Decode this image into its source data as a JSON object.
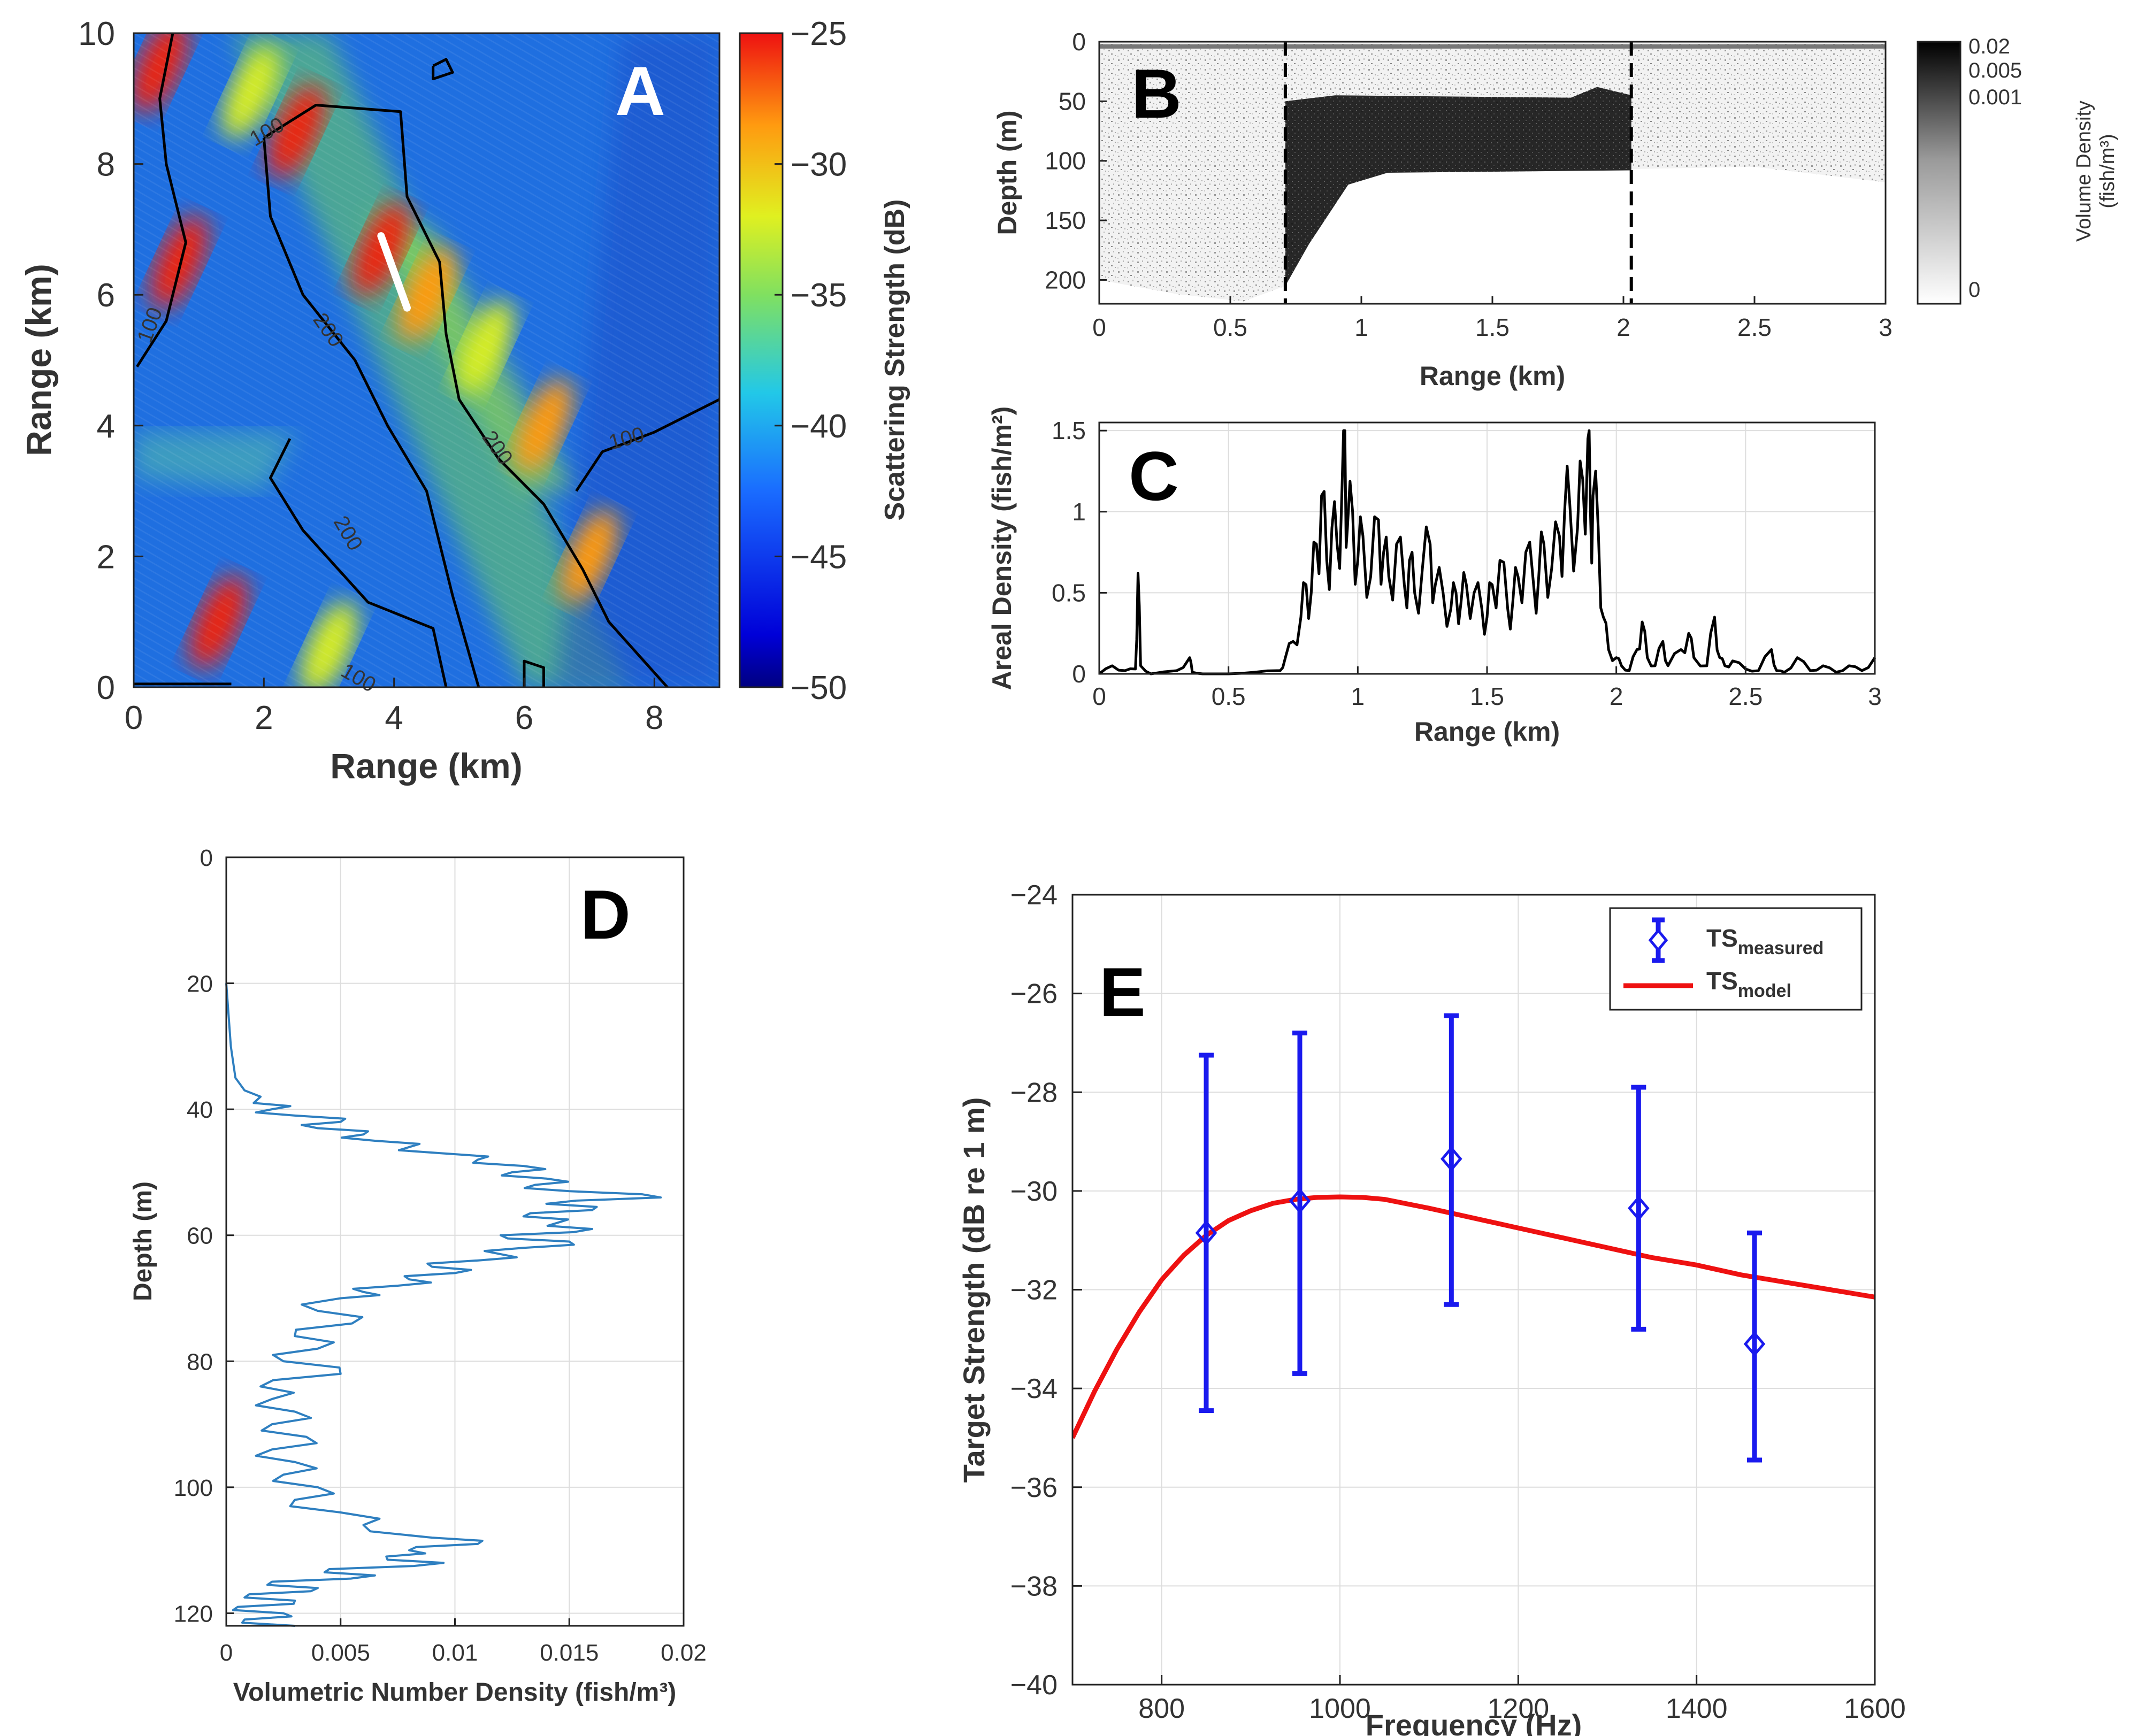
{
  "chart_data": [
    {
      "id": "A",
      "type": "heatmap",
      "panel_letter": "A",
      "xlabel": "Range (km)",
      "ylabel": "Range (km)",
      "xlim": [
        0,
        9
      ],
      "ylim": [
        0,
        10
      ],
      "x_ticks": [
        0,
        2,
        4,
        6,
        8
      ],
      "y_ticks": [
        0,
        2,
        4,
        6,
        8,
        10
      ],
      "colorbar": {
        "label": "Scattering Strength (dB)",
        "range": [
          -50,
          -25
        ],
        "ticks": [
          -25,
          -30,
          -35,
          -40,
          -45,
          -50
        ]
      },
      "contour_labels": [
        "100",
        "200",
        "200",
        "200",
        "100",
        "100",
        "100"
      ],
      "contours": [
        {
          "label": "100",
          "points": [
            [
              0.6,
              10
            ],
            [
              0.4,
              9.0
            ],
            [
              0.5,
              8.0
            ],
            [
              0.8,
              6.8
            ],
            [
              0.5,
              5.6
            ],
            [
              0.05,
              4.9
            ]
          ]
        },
        {
          "label": "200",
          "points": [
            [
              2.0,
              8.4
            ],
            [
              2.1,
              7.2
            ],
            [
              2.6,
              6.0
            ],
            [
              3.4,
              5.0
            ],
            [
              3.9,
              4.0
            ],
            [
              4.5,
              3.0
            ],
            [
              4.9,
              1.4
            ],
            [
              5.3,
              0
            ]
          ]
        },
        {
          "label": "200",
          "points": [
            [
              2.0,
              8.4
            ],
            [
              2.8,
              8.9
            ],
            [
              4.1,
              8.8
            ],
            [
              4.2,
              7.5
            ],
            [
              4.7,
              6.5
            ],
            [
              4.8,
              5.4
            ],
            [
              5.0,
              4.4
            ],
            [
              5.6,
              3.5
            ],
            [
              6.3,
              2.8
            ],
            [
              6.9,
              1.8
            ],
            [
              7.3,
              1.0
            ],
            [
              8.2,
              0
            ]
          ]
        },
        {
          "label": "100",
          "points": [
            [
              2.4,
              3.8
            ],
            [
              2.1,
              3.2
            ],
            [
              2.6,
              2.4
            ],
            [
              3.6,
              1.3
            ],
            [
              4.6,
              0.9
            ],
            [
              4.8,
              0
            ]
          ]
        },
        {
          "label": "100",
          "points": [
            [
              6.8,
              3.0
            ],
            [
              7.2,
              3.6
            ],
            [
              8.0,
              3.9
            ],
            [
              9.0,
              4.4
            ]
          ]
        },
        {
          "label": "100",
          "points": [
            [
              0,
              0.05
            ],
            [
              1.5,
              0.05
            ]
          ]
        },
        {
          "label": "",
          "points": [
            [
              4.6,
              9.5
            ],
            [
              4.8,
              9.6
            ],
            [
              4.9,
              9.4
            ],
            [
              4.6,
              9.3
            ],
            [
              4.6,
              9.5
            ]
          ]
        },
        {
          "label": "",
          "points": [
            [
              6.0,
              0
            ],
            [
              6.0,
              0.4
            ],
            [
              6.3,
              0.3
            ],
            [
              6.3,
              0
            ]
          ]
        }
      ],
      "hot_spots": [
        {
          "x": 0.4,
          "y": 9.5,
          "db": -27
        },
        {
          "x": 2.5,
          "y": 8.5,
          "db": -28
        },
        {
          "x": 3.8,
          "y": 6.7,
          "db": -26
        },
        {
          "x": 0.7,
          "y": 6.5,
          "db": -27
        },
        {
          "x": 1.3,
          "y": 1.0,
          "db": -27
        },
        {
          "x": 4.5,
          "y": 6.0,
          "db": -31
        },
        {
          "x": 6.3,
          "y": 4.0,
          "db": -30
        },
        {
          "x": 7.0,
          "y": 2.0,
          "db": -30
        },
        {
          "x": 1.8,
          "y": 9.1,
          "db": -34
        },
        {
          "x": 3.0,
          "y": 0.6,
          "db": -34
        },
        {
          "x": 5.4,
          "y": 5.2,
          "db": -33
        }
      ],
      "white_track": [
        [
          3.8,
          6.9
        ],
        [
          4.2,
          5.8
        ]
      ]
    },
    {
      "id": "B",
      "type": "heatmap",
      "panel_letter": "B",
      "xlabel": "Range (km)",
      "ylabel": "Depth (m)",
      "xlim": [
        0,
        3
      ],
      "ylim": [
        0,
        220
      ],
      "x_ticks": [
        "0",
        "0.5",
        "1",
        "1.5",
        "2",
        "2.5",
        "3"
      ],
      "y_ticks": [
        0,
        50,
        100,
        150,
        200
      ],
      "colorbar": {
        "label": "Volume Density",
        "unit": "(fish/m³)",
        "ticks": [
          "0.02",
          "0.005",
          "0.001",
          "0"
        ]
      },
      "dashed_lines_km": [
        0.71,
        2.03
      ],
      "school": {
        "x_start": 0.71,
        "x_end": 2.03,
        "top_m": 45,
        "bottom_m": 110
      },
      "seafloor": [
        [
          0,
          200
        ],
        [
          0.3,
          212
        ],
        [
          0.55,
          218
        ],
        [
          0.71,
          205
        ],
        [
          0.8,
          170
        ],
        [
          0.95,
          120
        ],
        [
          1.1,
          110
        ],
        [
          2.0,
          107
        ],
        [
          2.5,
          105
        ],
        [
          3.0,
          118
        ]
      ]
    },
    {
      "id": "C",
      "type": "line",
      "panel_letter": "C",
      "xlabel": "Range (km)",
      "ylabel": "Areal Density (fish/m²)",
      "xlim": [
        0,
        3
      ],
      "ylim": [
        0,
        1.55
      ],
      "x_ticks": [
        "0",
        "0.5",
        "1",
        "1.5",
        "2",
        "2.5",
        "3"
      ],
      "y_ticks": [
        "0",
        "0.5",
        "1",
        "1.5"
      ],
      "x": [
        0,
        0.05,
        0.1,
        0.14,
        0.15,
        0.16,
        0.2,
        0.3,
        0.35,
        0.36,
        0.4,
        0.5,
        0.6,
        0.7,
        0.72,
        0.75,
        0.78,
        0.8,
        0.82,
        0.84,
        0.86,
        0.88,
        0.9,
        0.92,
        0.94,
        0.95,
        0.96,
        0.98,
        1.0,
        1.02,
        1.05,
        1.08,
        1.1,
        1.12,
        1.15,
        1.18,
        1.2,
        1.22,
        1.25,
        1.28,
        1.3,
        1.33,
        1.36,
        1.38,
        1.4,
        1.42,
        1.45,
        1.48,
        1.5,
        1.52,
        1.55,
        1.58,
        1.6,
        1.62,
        1.65,
        1.68,
        1.7,
        1.72,
        1.75,
        1.78,
        1.8,
        1.82,
        1.85,
        1.87,
        1.89,
        1.9,
        1.91,
        1.93,
        1.95,
        1.97,
        2.0,
        2.02,
        2.05,
        2.08,
        2.1,
        2.12,
        2.15,
        2.18,
        2.2,
        2.25,
        2.28,
        2.3,
        2.35,
        2.38,
        2.4,
        2.42,
        2.45,
        2.5,
        2.55,
        2.6,
        2.62,
        2.65,
        2.7,
        2.75,
        2.8,
        2.85,
        2.9,
        2.95,
        3.0
      ],
      "y": [
        0,
        0.05,
        0.02,
        0.03,
        0.62,
        0.05,
        0.0,
        0.02,
        0.1,
        0.01,
        0.0,
        0.0,
        0.01,
        0.02,
        0.1,
        0.2,
        0.35,
        0.55,
        0.5,
        0.8,
        1.1,
        0.7,
        0.9,
        0.8,
        1.2,
        1.5,
        0.9,
        1.0,
        0.7,
        0.85,
        0.6,
        0.95,
        0.75,
        0.6,
        0.8,
        0.55,
        0.7,
        0.5,
        0.65,
        0.8,
        0.55,
        0.5,
        0.4,
        0.5,
        0.45,
        0.55,
        0.5,
        0.4,
        0.35,
        0.55,
        0.7,
        0.4,
        0.45,
        0.6,
        0.75,
        0.55,
        0.6,
        0.8,
        0.65,
        0.85,
        1.0,
        1.05,
        0.9,
        1.2,
        1.45,
        1.0,
        1.1,
        0.9,
        0.35,
        0.15,
        0.1,
        0.05,
        0.02,
        0.15,
        0.32,
        0.1,
        0.05,
        0.2,
        0.05,
        0.15,
        0.25,
        0.1,
        0.05,
        0.35,
        0.1,
        0.05,
        0.08,
        0.03,
        0.02,
        0.15,
        0.02,
        0.01,
        0.1,
        0.02,
        0.05,
        0.01,
        0.05,
        0.02,
        0.1
      ]
    },
    {
      "id": "D",
      "type": "line",
      "panel_letter": "D",
      "xlabel": "Volumetric Number Density (fish/m³)",
      "ylabel": "Depth (m)",
      "xlim": [
        0,
        0.02
      ],
      "ylim": [
        0,
        122
      ],
      "x_ticks": [
        "0",
        "0.005",
        "0.01",
        "0.015",
        "0.02"
      ],
      "y_ticks": [
        0,
        20,
        40,
        60,
        80,
        100,
        120
      ],
      "depth": [
        20,
        25,
        30,
        35,
        37,
        38,
        39,
        40,
        41,
        42,
        43,
        44,
        45,
        46,
        47,
        48,
        49,
        50,
        51,
        52,
        53,
        54,
        55,
        56,
        57,
        58,
        59,
        60,
        61,
        62,
        63,
        64,
        65,
        66,
        67,
        68,
        69,
        70,
        72,
        74,
        76,
        78,
        80,
        82,
        84,
        86,
        88,
        90,
        92,
        94,
        96,
        98,
        100,
        102,
        104,
        106,
        108,
        109,
        110,
        111,
        112,
        113,
        114,
        115,
        116,
        117,
        118,
        119,
        120,
        121,
        122
      ],
      "density": [
        0.0,
        0.0001,
        0.0002,
        0.0004,
        0.0008,
        0.0015,
        0.0012,
        0.002,
        0.003,
        0.005,
        0.004,
        0.006,
        0.0065,
        0.008,
        0.0095,
        0.011,
        0.013,
        0.0125,
        0.014,
        0.0135,
        0.015,
        0.019,
        0.014,
        0.016,
        0.013,
        0.0145,
        0.016,
        0.012,
        0.015,
        0.013,
        0.012,
        0.011,
        0.009,
        0.01,
        0.008,
        0.0075,
        0.006,
        0.005,
        0.004,
        0.0055,
        0.003,
        0.004,
        0.0025,
        0.005,
        0.0015,
        0.002,
        0.003,
        0.002,
        0.0035,
        0.002,
        0.003,
        0.0025,
        0.004,
        0.003,
        0.005,
        0.006,
        0.009,
        0.011,
        0.008,
        0.007,
        0.0095,
        0.0045,
        0.0065,
        0.002,
        0.004,
        0.001,
        0.003,
        0.0005,
        0.0025,
        0.0008,
        0.003
      ]
    },
    {
      "id": "E",
      "type": "line",
      "panel_letter": "E",
      "xlabel": "Frequency (Hz)",
      "ylabel": "Target Strength (dB re 1 m)",
      "xlim": [
        700,
        1600
      ],
      "ylim": [
        -40,
        -24
      ],
      "x_ticks": [
        800,
        1000,
        1200,
        1400,
        1600
      ],
      "y_ticks": [
        -24,
        -26,
        -28,
        -30,
        -32,
        -34,
        -36,
        -38,
        -40
      ],
      "legend": {
        "measured": "TS",
        "measured_sub": "measured",
        "model": "TS",
        "model_sub": "model",
        "placement": "top-right"
      },
      "measured": [
        {
          "f": 850,
          "ts": -30.85,
          "err_low": -34.45,
          "err_high": -27.25
        },
        {
          "f": 955,
          "ts": -30.2,
          "err_low": -33.7,
          "err_high": -26.8
        },
        {
          "f": 1125,
          "ts": -29.35,
          "err_low": -32.3,
          "err_high": -26.45
        },
        {
          "f": 1335,
          "ts": -30.35,
          "err_low": -32.8,
          "err_high": -27.9
        },
        {
          "f": 1465,
          "ts": -33.1,
          "err_low": -35.45,
          "err_high": -30.85
        }
      ],
      "model_f": [
        700,
        725,
        750,
        775,
        800,
        825,
        850,
        875,
        900,
        925,
        950,
        975,
        1000,
        1025,
        1050,
        1100,
        1150,
        1200,
        1250,
        1300,
        1350,
        1400,
        1450,
        1500,
        1550,
        1600
      ],
      "model_ts": [
        -35.0,
        -34.05,
        -33.2,
        -32.45,
        -31.8,
        -31.3,
        -30.9,
        -30.6,
        -30.4,
        -30.25,
        -30.17,
        -30.13,
        -30.12,
        -30.13,
        -30.17,
        -30.35,
        -30.55,
        -30.75,
        -30.95,
        -31.15,
        -31.35,
        -31.5,
        -31.7,
        -31.85,
        -32.0,
        -32.15
      ]
    }
  ],
  "colors": {
    "measured": "#1a1aee",
    "model": "#ee1111",
    "trace": "#000000",
    "profile": "#2e7fc0",
    "contour": "#000000"
  }
}
